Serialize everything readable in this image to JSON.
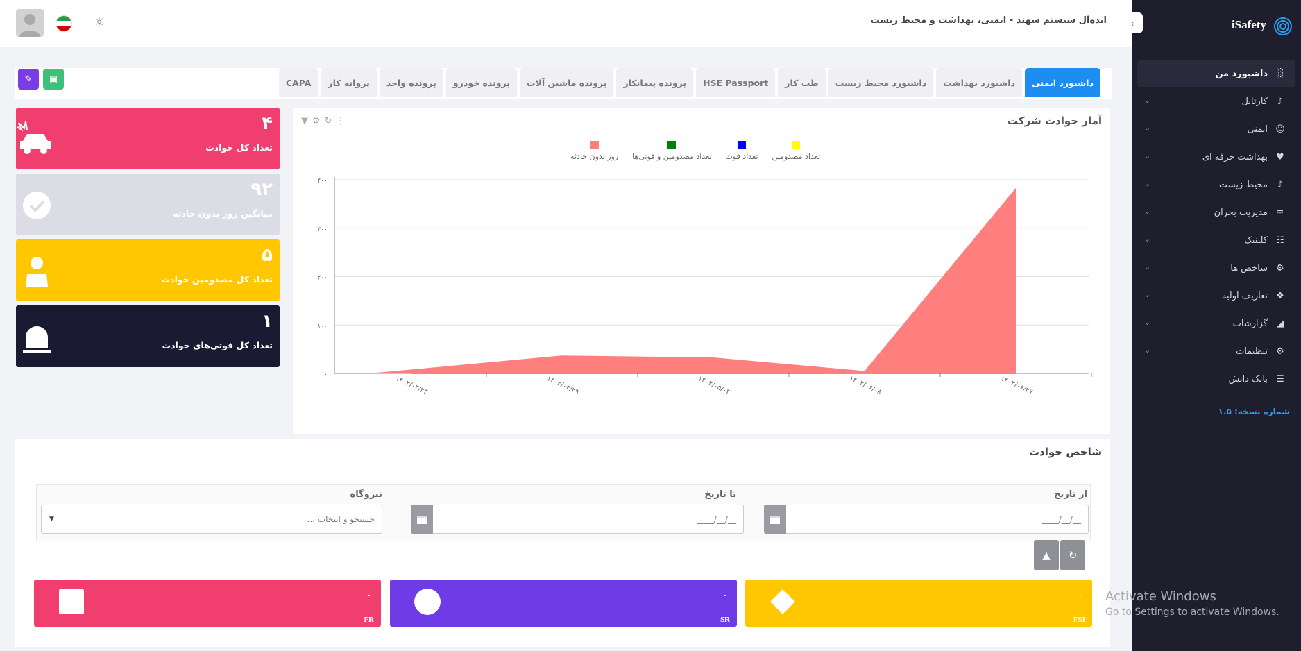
{
  "app": {
    "name": "iSafety",
    "title": "ایده‌آل سیستم سهند - ایمنی، بهداشت و محیط زیست",
    "version": "شماره نسخه: ۱.۵"
  },
  "sidebar": {
    "items": [
      {
        "label": "داشبورد من",
        "icon": "chart-icon"
      },
      {
        "label": "کارتابل",
        "icon": "bell-icon"
      },
      {
        "label": "ایمنی",
        "icon": "user-icon"
      },
      {
        "label": "بهداشت حرفه ای",
        "icon": "heartbeat-icon"
      },
      {
        "label": "محیط زیست",
        "icon": "bell-icon"
      },
      {
        "label": "مدیریت بحران",
        "icon": "layers-icon"
      },
      {
        "label": "کلینیک",
        "icon": "clipboard-icon"
      },
      {
        "label": "شاخص ها",
        "icon": "gear-icon"
      },
      {
        "label": "تعاریف اولیه",
        "icon": "puzzle-icon"
      },
      {
        "label": "گزارشات",
        "icon": "area-chart-icon"
      },
      {
        "label": "تنظیمات",
        "icon": "cogs-icon"
      },
      {
        "label": "بانک دانش",
        "icon": "database-icon"
      }
    ]
  },
  "tabs": [
    "داشبورد ایمنی",
    "داشبورد بهداشت",
    "داشبورد محیط زیست",
    "طب کار",
    "HSE Passport",
    "پرونده پیمانکار",
    "پرونده ماشین آلات",
    "پرونده خودرو",
    "پرونده واحد",
    "پروانه کار",
    "CAPA"
  ],
  "stats": [
    {
      "value": "۴",
      "label": "تعداد کل حوادث",
      "color": "#f03e6e"
    },
    {
      "value": "۹۲",
      "label": "میانگین روز بدون حادثه",
      "color": "#dcdde4"
    },
    {
      "value": "۵",
      "label": "تعداد کل مصدومین حوادث",
      "color": "#ffc700"
    },
    {
      "value": "۱",
      "label": "تعداد کل فوتی‌های حوادث",
      "color": "#1a1b33"
    }
  ],
  "chart_panel": {
    "title": "آمار حوادث شرکت"
  },
  "chart_data": {
    "type": "area",
    "x": [
      "۱۴۰۲/۰۳/۲۳",
      "۱۴۰۲/۰۴/۲۹",
      "۱۴۰۲/۰۵/۰۲",
      "۱۴۰۲/۰۶/۰۸",
      "۱۴۰۲/۰۶/۲۷"
    ],
    "yticks": [
      "۰",
      "۱۰۰",
      "۲۰۰",
      "۳۰۰",
      "۴۰۰"
    ],
    "ylim": [
      0,
      400
    ],
    "series": [
      {
        "name": "تعداد مصدومین",
        "color": "#ffff00",
        "values": [
          0,
          0,
          0,
          0,
          0
        ]
      },
      {
        "name": "تعداد فوت",
        "color": "#0000ff",
        "values": [
          0,
          0,
          0,
          0,
          0
        ]
      },
      {
        "name": "تعداد مصدومین و فوتی‌ها",
        "color": "#008000",
        "values": [
          0,
          1,
          0,
          0,
          0
        ]
      },
      {
        "name": "روز بدون حادثه",
        "color": "#ff7f7f",
        "values": [
          0,
          37,
          33,
          5,
          383
        ]
      }
    ],
    "legend": "top"
  },
  "indices": {
    "title": "شاخص حوادث",
    "from_label": "از تاریخ",
    "to_label": "تا تاریخ",
    "plant_label": "نیروگاه",
    "date_mask": "__/__/____",
    "plant_placeholder": "جستجو و انتخاب ...",
    "kpis": [
      {
        "name": "FSI",
        "value": "۰",
        "color": "#ffc700",
        "shape": "diamond"
      },
      {
        "name": "SR",
        "value": "۰",
        "color": "#6e3be6",
        "shape": "circle"
      },
      {
        "name": "FR",
        "value": "۰",
        "color": "#f03e6e",
        "shape": "square"
      }
    ]
  },
  "watermark": {
    "line1": "Activate Windows",
    "line2": "Go to Settings to activate Windows."
  }
}
